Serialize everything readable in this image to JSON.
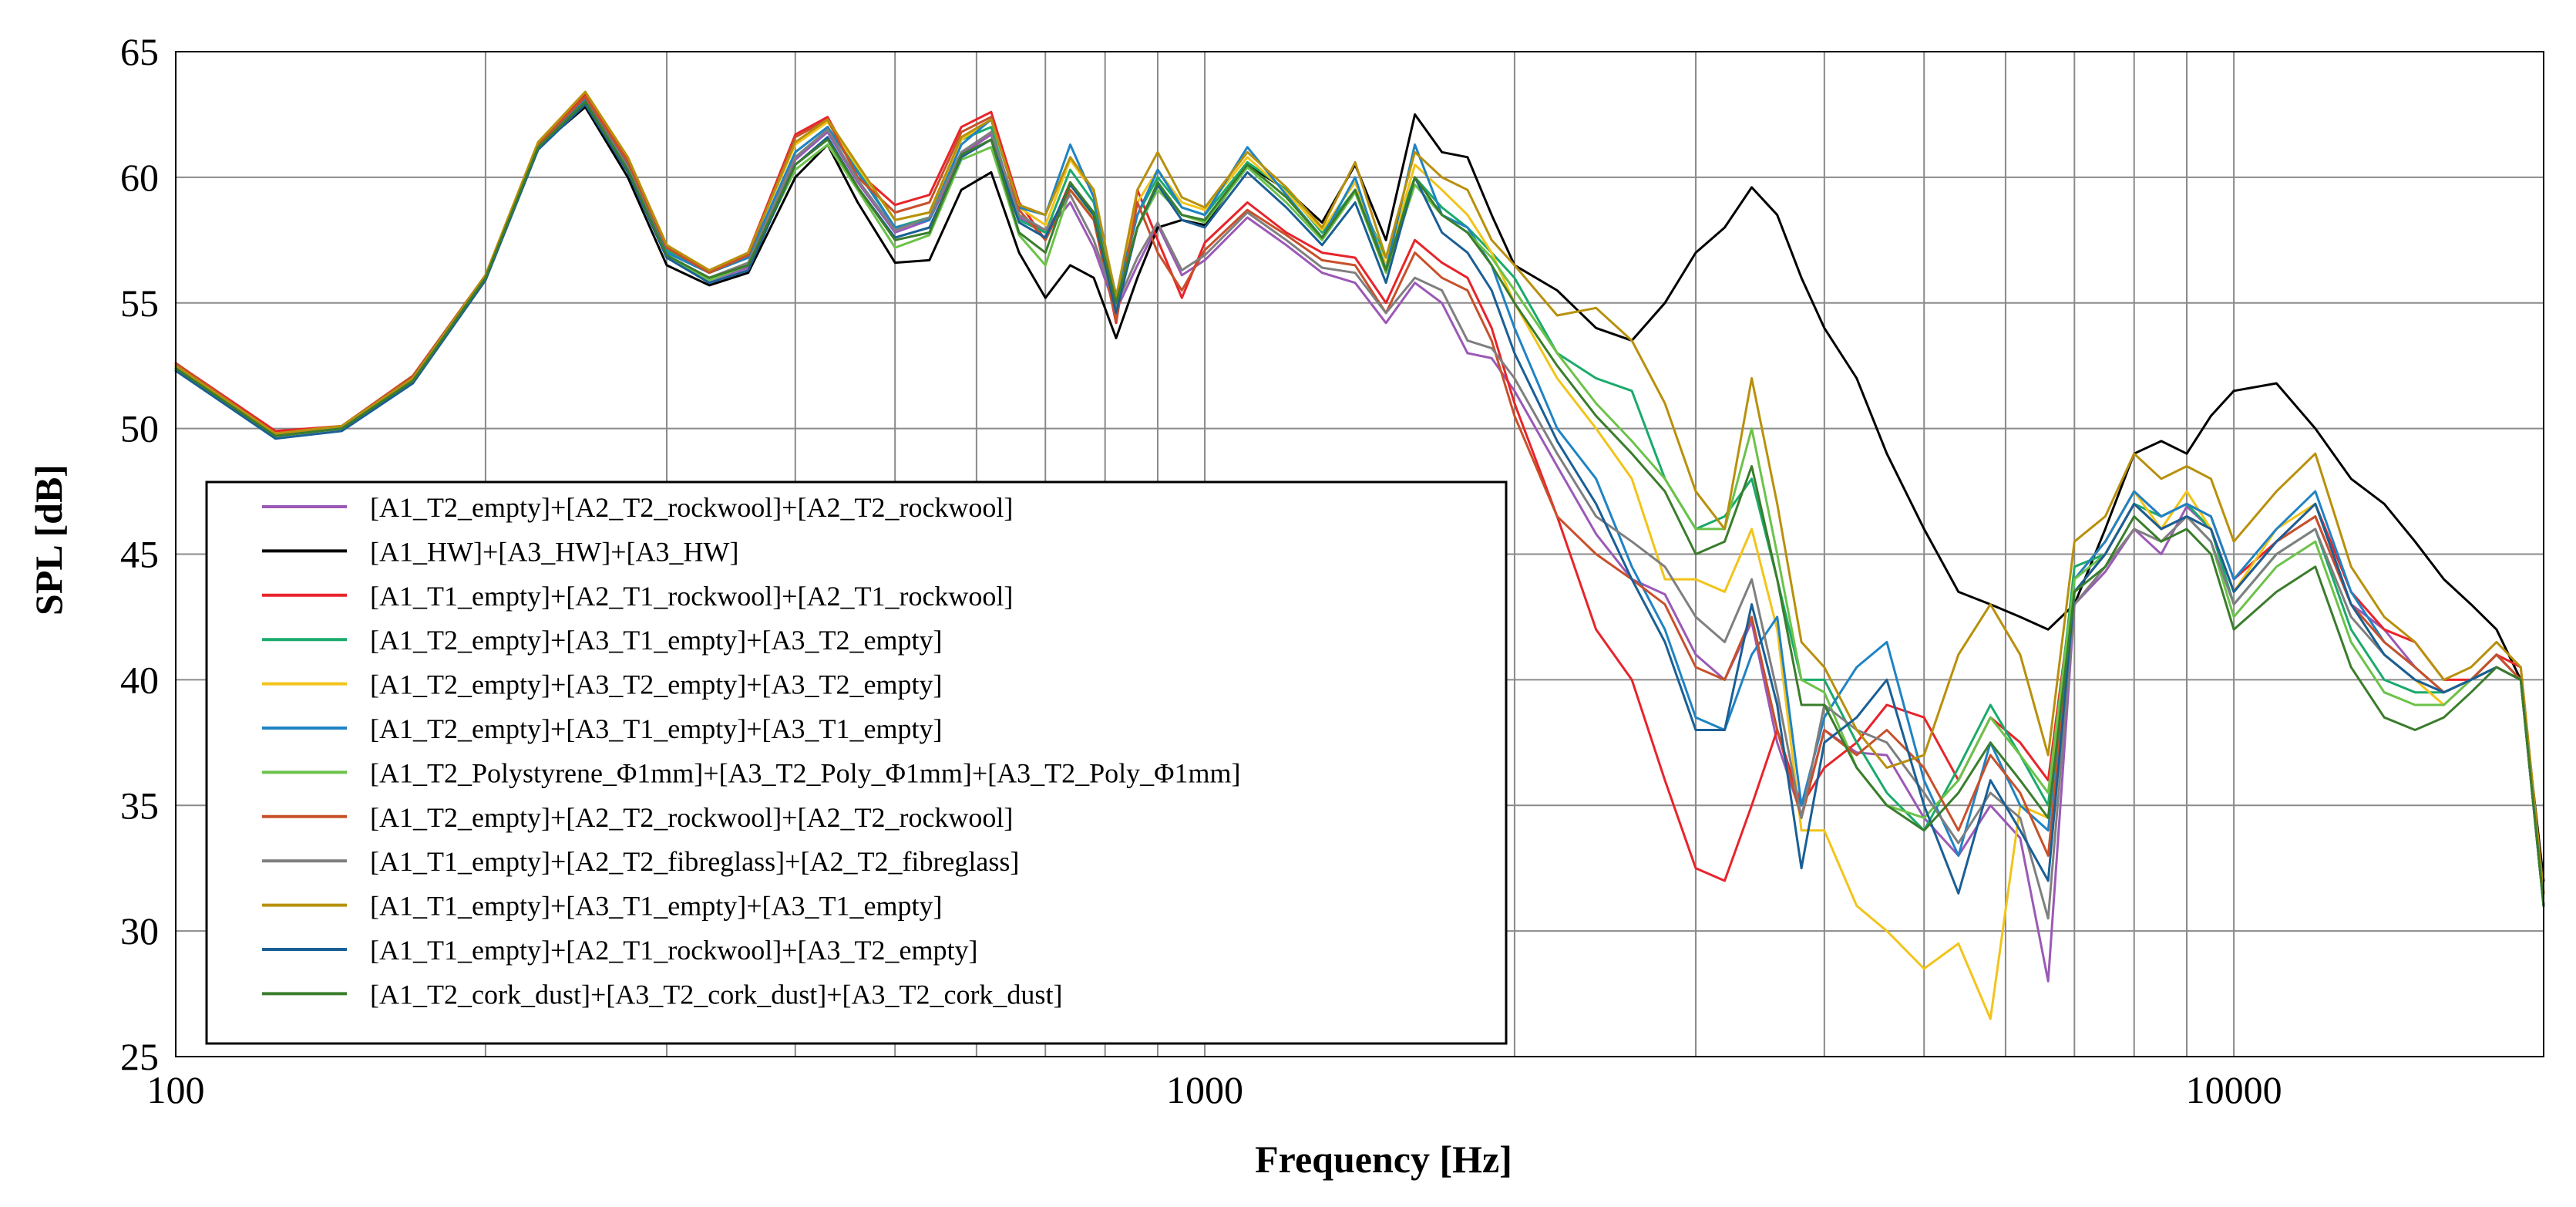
{
  "chart_data": {
    "type": "line",
    "title": "",
    "xlabel": "Frequency [Hz]",
    "ylabel": "SPL [dB]",
    "xscale": "log",
    "xlim": [
      100,
      20000
    ],
    "ylim": [
      25,
      65
    ],
    "grid": true,
    "legend_position": "bottom-left",
    "x_tick_labels": [
      "100",
      "1000",
      "10000"
    ],
    "y_tick_labels": [
      "25",
      "30",
      "35",
      "40",
      "45",
      "50",
      "55",
      "60",
      "65"
    ],
    "x": [
      100,
      125,
      145,
      170,
      200,
      225,
      250,
      275,
      300,
      330,
      360,
      400,
      430,
      460,
      500,
      540,
      580,
      620,
      660,
      700,
      740,
      780,
      820,
      860,
      900,
      950,
      1000,
      1100,
      1200,
      1300,
      1400,
      1500,
      1600,
      1700,
      1800,
      1900,
      2000,
      2200,
      2400,
      2600,
      2800,
      3000,
      3200,
      3400,
      3600,
      3800,
      4000,
      4300,
      4600,
      5000,
      5400,
      5800,
      6200,
      6600,
      7000,
      7500,
      8000,
      8500,
      9000,
      9500,
      10000,
      11000,
      12000,
      13000,
      14000,
      15000,
      16000,
      17000,
      18000,
      19000,
      20000
    ],
    "series": [
      {
        "name": "[A1_T2_empty]+[A2_T2_rockwool]+[A2_T2_rockwool]",
        "color": "#9b59b6",
        "values": [
          52.3,
          49.7,
          50.0,
          51.9,
          56.0,
          61.2,
          63.0,
          60.3,
          56.9,
          55.9,
          56.4,
          60.7,
          61.8,
          59.8,
          57.8,
          58.3,
          60.9,
          61.7,
          58.4,
          57.8,
          59.0,
          57.2,
          54.7,
          56.5,
          58.1,
          56.1,
          56.7,
          58.4,
          57.3,
          56.2,
          55.8,
          54.2,
          55.8,
          55.0,
          53.0,
          52.8,
          51.5,
          48.5,
          45.8,
          44.0,
          43.4,
          41.0,
          40.0,
          42.3,
          37.5,
          34.6,
          38.0,
          37.1,
          37.0,
          34.5,
          33.0,
          35.0,
          33.7,
          28.0,
          43.0,
          44.3,
          46.0,
          45.0,
          46.9,
          46.0,
          43.5,
          45.5,
          46.5,
          43.0,
          42.0,
          40.5,
          39.5,
          40.0,
          41.0,
          40.0,
          31.0
        ]
      },
      {
        "name": "[A1_HW]+[A3_HW]+[A3_HW]",
        "color": "#000000",
        "values": [
          52.5,
          49.8,
          50.1,
          52.0,
          56.0,
          61.2,
          62.8,
          60.0,
          56.5,
          55.7,
          56.2,
          60.0,
          61.3,
          59.0,
          56.6,
          56.7,
          59.5,
          60.2,
          57.0,
          55.2,
          56.5,
          56.0,
          53.6,
          56.0,
          58.0,
          58.3,
          58.1,
          60.5,
          59.5,
          58.2,
          60.5,
          57.5,
          62.5,
          61.0,
          60.8,
          58.5,
          56.5,
          55.5,
          54.0,
          53.5,
          55.0,
          57.0,
          58.0,
          59.6,
          58.5,
          56.0,
          54.0,
          52.0,
          49.0,
          46.0,
          43.5,
          43.0,
          42.5,
          42.0,
          43.0,
          46.0,
          49.0,
          49.5,
          49.0,
          50.5,
          51.5,
          51.8,
          50.0,
          48.0,
          47.0,
          45.5,
          44.0,
          43.0,
          42.0,
          40.0,
          32.0
        ]
      },
      {
        "name": "[A1_T1_empty]+[A2_T1_rockwool]+[A2_T1_rockwool]",
        "color": "#e8242b",
        "values": [
          52.6,
          49.9,
          50.1,
          52.1,
          56.1,
          61.4,
          63.3,
          60.7,
          57.3,
          56.2,
          57.0,
          61.7,
          62.4,
          60.2,
          58.9,
          59.3,
          62.0,
          62.6,
          59.0,
          57.5,
          59.8,
          58.5,
          54.2,
          59.5,
          57.5,
          55.2,
          57.4,
          59.0,
          57.8,
          57.0,
          56.8,
          55.0,
          57.5,
          56.6,
          56.0,
          54.0,
          51.0,
          46.5,
          42.0,
          40.0,
          36.0,
          32.5,
          32.0,
          35.0,
          38.0,
          35.0,
          36.5,
          37.5,
          39.0,
          38.5,
          36.0,
          38.5,
          37.5,
          36.0,
          44.0,
          45.5,
          47.5,
          46.5,
          47.0,
          46.5,
          44.0,
          45.5,
          47.0,
          43.5,
          42.0,
          41.5,
          40.0,
          40.0,
          41.0,
          40.5,
          31.5
        ]
      },
      {
        "name": "[A1_T2_empty]+[A3_T1_empty]+[A3_T2_empty]",
        "color": "#1aaa6b",
        "values": [
          52.5,
          49.8,
          50.0,
          52.0,
          56.0,
          61.3,
          63.1,
          60.5,
          57.1,
          56.2,
          56.8,
          61.0,
          62.0,
          60.3,
          58.0,
          58.4,
          61.5,
          62.0,
          58.3,
          57.8,
          60.3,
          59.0,
          55.0,
          58.5,
          60.0,
          58.8,
          58.5,
          60.6,
          59.5,
          57.8,
          59.5,
          56.8,
          60.0,
          58.8,
          58.0,
          57.0,
          56.0,
          53.0,
          52.0,
          51.5,
          48.0,
          46.0,
          46.5,
          48.0,
          44.0,
          40.0,
          40.0,
          37.5,
          35.5,
          34.0,
          36.5,
          39.0,
          37.0,
          35.0,
          44.5,
          45.0,
          47.0,
          46.5,
          47.0,
          46.0,
          43.0,
          45.0,
          46.0,
          42.0,
          40.0,
          39.5,
          39.5,
          40.0,
          40.5,
          40.0,
          31.0
        ]
      },
      {
        "name": "[A1_T2_empty]+[A3_T2_empty]+[A3_T2_empty]",
        "color": "#f2c41a",
        "values": [
          52.5,
          49.8,
          50.1,
          52.0,
          56.1,
          61.4,
          63.4,
          60.8,
          57.3,
          56.3,
          57.0,
          61.3,
          62.2,
          60.4,
          58.3,
          58.6,
          61.5,
          62.3,
          58.8,
          58.1,
          60.7,
          59.4,
          55.0,
          59.0,
          60.3,
          59.0,
          58.7,
          60.8,
          59.4,
          57.9,
          59.8,
          56.5,
          60.5,
          59.5,
          58.5,
          57.0,
          55.0,
          52.0,
          50.0,
          48.0,
          44.0,
          44.0,
          43.5,
          46.0,
          42.0,
          34.0,
          34.0,
          31.0,
          30.0,
          28.5,
          29.5,
          26.5,
          35.0,
          34.5,
          44.0,
          45.5,
          47.5,
          46.0,
          47.5,
          46.0,
          43.5,
          46.0,
          47.0,
          43.0,
          41.0,
          40.0,
          39.0,
          40.0,
          41.0,
          40.0,
          31.0
        ]
      },
      {
        "name": "[A1_T2_empty]+[A3_T1_empty]+[A3_T1_empty]",
        "color": "#1f83c4",
        "values": [
          52.4,
          49.7,
          50.0,
          51.9,
          56.0,
          61.3,
          63.1,
          60.5,
          57.0,
          56.2,
          56.8,
          61.0,
          62.0,
          60.2,
          58.0,
          58.3,
          61.3,
          62.3,
          58.8,
          58.5,
          61.3,
          59.2,
          55.3,
          58.5,
          60.3,
          58.8,
          58.5,
          61.2,
          59.3,
          57.6,
          60.0,
          56.3,
          61.3,
          58.5,
          58.0,
          56.5,
          54.0,
          50.0,
          48.0,
          44.5,
          42.0,
          38.5,
          38.0,
          41.0,
          42.5,
          35.0,
          38.5,
          40.5,
          41.5,
          36.0,
          33.0,
          37.5,
          35.0,
          34.0,
          44.0,
          45.5,
          47.5,
          46.5,
          47.0,
          46.5,
          44.0,
          46.0,
          47.5,
          43.5,
          41.5,
          40.5,
          39.5,
          40.0,
          41.0,
          40.0,
          31.0
        ]
      },
      {
        "name": "[A1_T2_Polystyrene_Φ1mm]+[A3_T2_Poly_Φ1mm]+[A3_T2_Poly_Φ1mm]",
        "color": "#6cc24a",
        "values": [
          52.4,
          49.7,
          50.0,
          51.9,
          56.0,
          61.2,
          63.0,
          60.3,
          56.8,
          55.9,
          56.5,
          60.3,
          61.3,
          59.5,
          57.2,
          57.7,
          60.7,
          61.2,
          57.7,
          56.5,
          59.5,
          58.4,
          54.8,
          58.0,
          59.5,
          58.5,
          58.2,
          60.4,
          59.0,
          57.5,
          59.4,
          56.2,
          59.7,
          58.5,
          57.8,
          56.8,
          55.5,
          53.0,
          51.0,
          49.5,
          48.0,
          46.0,
          46.0,
          50.0,
          45.0,
          40.0,
          39.5,
          36.5,
          35.0,
          34.5,
          36.0,
          38.5,
          37.0,
          35.5,
          44.0,
          45.0,
          47.0,
          46.0,
          46.5,
          45.5,
          42.5,
          44.5,
          45.5,
          41.5,
          39.5,
          39.0,
          39.0,
          40.0,
          40.5,
          40.0,
          31.0
        ]
      },
      {
        "name": "[A1_T2_empty]+[A2_T2_rockwool]+[A2_T2_rockwool]",
        "color": "#c8502a",
        "values": [
          52.6,
          49.8,
          50.1,
          52.1,
          56.1,
          61.3,
          63.2,
          60.6,
          57.2,
          56.2,
          56.9,
          61.6,
          62.3,
          60.0,
          58.6,
          59.0,
          61.8,
          62.4,
          58.7,
          57.5,
          59.5,
          58.3,
          54.3,
          59.0,
          57.0,
          55.5,
          57.1,
          58.7,
          57.7,
          56.7,
          56.5,
          54.6,
          57.0,
          56.0,
          55.5,
          53.5,
          50.5,
          46.5,
          45.0,
          44.0,
          43.0,
          40.5,
          40.0,
          42.5,
          38.0,
          34.5,
          38.0,
          37.0,
          38.0,
          36.5,
          34.0,
          37.0,
          35.5,
          33.0,
          43.5,
          45.0,
          47.0,
          46.0,
          46.5,
          46.0,
          43.5,
          45.5,
          46.5,
          43.0,
          41.5,
          40.5,
          39.5,
          40.0,
          41.0,
          40.0,
          31.0
        ]
      },
      {
        "name": "[A1_T1_empty]+[A2_T2_fibreglass]+[A2_T2_fibreglass]",
        "color": "#7f7f7f",
        "values": [
          52.4,
          49.7,
          50.0,
          51.9,
          56.0,
          61.2,
          63.0,
          60.4,
          56.9,
          56.0,
          56.6,
          60.8,
          61.9,
          59.9,
          57.9,
          58.4,
          61.0,
          61.8,
          58.5,
          57.9,
          59.3,
          57.5,
          54.9,
          56.8,
          58.2,
          56.3,
          56.9,
          58.6,
          57.5,
          56.4,
          56.2,
          54.6,
          56.0,
          55.5,
          53.5,
          53.2,
          52.0,
          49.0,
          46.5,
          45.5,
          44.5,
          42.5,
          41.5,
          44.0,
          39.5,
          34.5,
          39.0,
          38.0,
          37.5,
          35.5,
          33.5,
          35.5,
          34.5,
          30.5,
          43.0,
          44.5,
          46.0,
          45.5,
          46.5,
          45.5,
          43.0,
          45.0,
          46.0,
          42.5,
          41.0,
          40.0,
          39.5,
          40.0,
          40.5,
          40.0,
          31.0
        ]
      },
      {
        "name": "[A1_T1_empty]+[A3_T1_empty]+[A3_T1_empty]",
        "color": "#b8900c",
        "values": [
          52.5,
          49.8,
          50.1,
          52.0,
          56.1,
          61.4,
          63.4,
          60.8,
          57.3,
          56.3,
          57.0,
          61.4,
          62.3,
          60.5,
          58.3,
          58.6,
          61.6,
          62.3,
          58.9,
          58.5,
          60.8,
          59.5,
          55.2,
          59.5,
          61.0,
          59.2,
          58.8,
          61.0,
          59.6,
          58.0,
          60.6,
          56.8,
          61.0,
          60.0,
          59.5,
          57.5,
          56.5,
          54.5,
          54.8,
          53.5,
          51.0,
          47.5,
          46.0,
          52.0,
          47.0,
          41.5,
          40.5,
          38.0,
          36.5,
          37.0,
          41.0,
          43.0,
          41.0,
          37.0,
          45.5,
          46.5,
          49.0,
          48.0,
          48.5,
          48.0,
          45.5,
          47.5,
          49.0,
          44.5,
          42.5,
          41.5,
          40.0,
          40.5,
          41.5,
          40.5,
          31.5
        ]
      },
      {
        "name": "[A1_T1_empty]+[A2_T1_rockwool]+[A3_T2_empty]",
        "color": "#1a5f96",
        "values": [
          52.3,
          49.6,
          49.9,
          51.8,
          55.9,
          61.1,
          62.9,
          60.2,
          56.8,
          55.8,
          56.3,
          60.5,
          61.6,
          59.6,
          57.6,
          58.0,
          60.8,
          61.5,
          58.2,
          57.6,
          59.7,
          58.5,
          54.6,
          58.0,
          59.7,
          58.3,
          58.0,
          60.2,
          58.8,
          57.3,
          59.0,
          55.8,
          60.0,
          57.8,
          57.0,
          55.5,
          53.0,
          49.5,
          47.0,
          44.0,
          41.5,
          38.0,
          38.0,
          43.0,
          39.0,
          32.5,
          37.5,
          38.5,
          40.0,
          35.0,
          31.5,
          36.0,
          34.0,
          32.0,
          43.5,
          45.0,
          47.0,
          46.0,
          46.5,
          46.0,
          43.5,
          45.5,
          47.0,
          43.0,
          41.0,
          40.0,
          39.5,
          40.0,
          40.5,
          40.0,
          31.0
        ]
      },
      {
        "name": "[A1_T2_cork_dust]+[A3_T2_cork_dust]+[A3_T2_cork_dust]",
        "color": "#3a7d2c",
        "values": [
          52.4,
          49.7,
          50.0,
          51.9,
          56.0,
          61.2,
          63.0,
          60.3,
          56.9,
          56.0,
          56.5,
          60.5,
          61.5,
          59.6,
          57.5,
          57.8,
          60.9,
          61.5,
          57.8,
          57.0,
          59.8,
          58.6,
          55.0,
          58.0,
          59.8,
          58.5,
          58.3,
          60.5,
          59.2,
          57.6,
          59.5,
          56.3,
          60.0,
          58.5,
          57.8,
          56.5,
          55.0,
          52.5,
          50.5,
          49.0,
          47.5,
          45.0,
          45.5,
          48.5,
          44.0,
          39.0,
          39.0,
          36.5,
          35.0,
          34.0,
          35.5,
          37.5,
          36.0,
          34.5,
          43.5,
          44.5,
          46.5,
          45.5,
          46.0,
          45.0,
          42.0,
          43.5,
          44.5,
          40.5,
          38.5,
          38.0,
          38.5,
          39.5,
          40.5,
          40.0,
          31.0
        ]
      }
    ]
  }
}
